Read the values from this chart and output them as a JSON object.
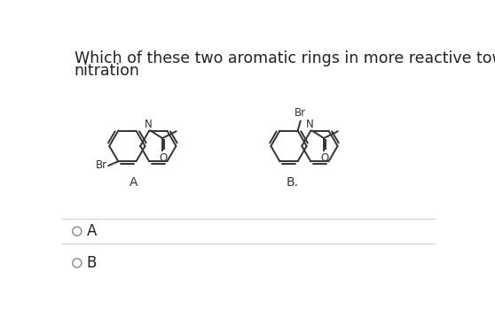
{
  "title_line1": "Which of these two aromatic rings in more reactive toward",
  "title_line2": "nitration",
  "option_A": "A",
  "option_B": "B",
  "bg_color": "#ffffff",
  "text_color": "#222222",
  "structure_color": "#333333",
  "line_width": 1.4,
  "title_fontsize": 12.5
}
